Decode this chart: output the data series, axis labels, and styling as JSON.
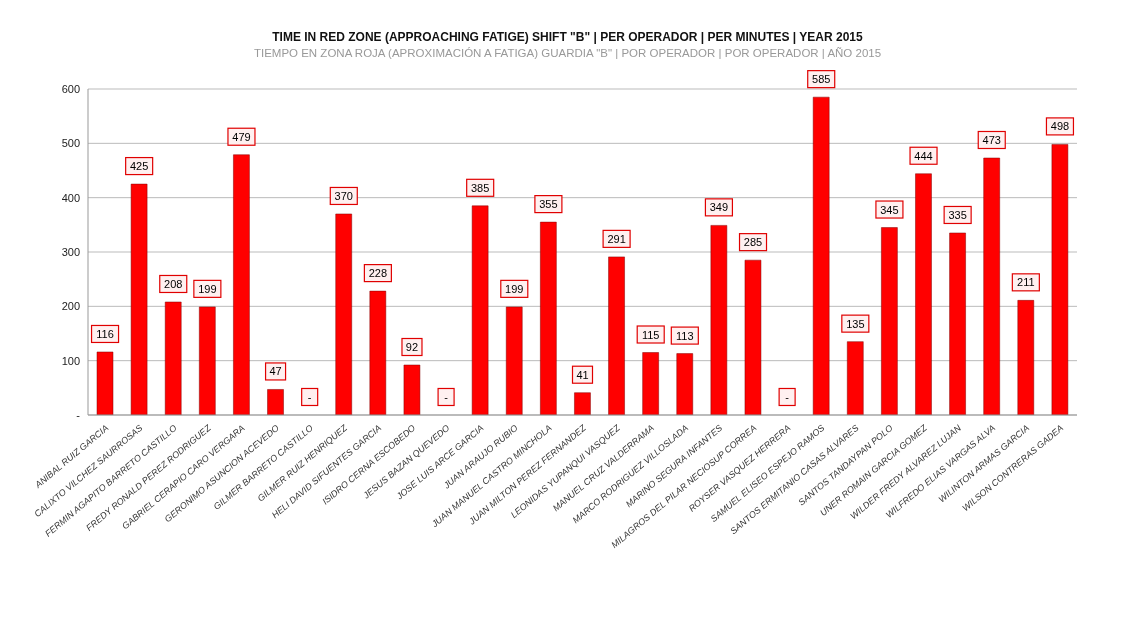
{
  "chart_data": {
    "type": "bar",
    "title": "TIME IN RED ZONE (APPROACHING FATIGE) SHIFT \"B\" | PER OPERADOR | PER MINUTES | YEAR 2015",
    "subtitle": "TIEMPO EN  ZONA  ROJA (APROXIMACIÓN A FATIGA) GUARDIA \"B\" | POR OPERADOR | POR OPERADOR | AÑO 2015",
    "categories": [
      "ANIBAL RUIZ GARCIA",
      "CALIXTO VILCHEZ SAURROSAS",
      "FERMIN AGAPITO BARRETO CASTILLO",
      "FREDY RONALD PEREZ RODRIGUEZ",
      "GABRIEL CERAPIO CARO VERGARA",
      "GERONIMO ASUNCION ACEVEDO",
      "GILMER BARRETO CASTILLO",
      "GILMER RUIZ HENRIQUEZ",
      "HELI DAVID SIFUENTES GARCIA",
      "ISIDRO CERNA ESCOBEDO",
      "JESUS BAZAN QUEVEDO",
      "JOSE LUIS ARCE GARCIA",
      "JUAN ARAUJO RUBIO",
      "JUAN MANUEL CASTRO MINCHOLA",
      "JUAN MILTON PEREZ FERNANDEZ",
      "LEONIDAS YUPANQUI VASQUEZ",
      "MANUEL CRUZ VALDERRAMA",
      "MARCO RODRIGUEZ VILLOSLADA",
      "MARINO SEGURA INFANTES",
      "MILAGROS DEL PILAR NECIOSUP CORREA",
      "ROYSER VASQUEZ HERRERA",
      "SAMUEL ELISEO ESPEJO RAMOS",
      "SANTOS ERMITANIO CASAS ALVARES",
      "SANTOS TANDAYPAN POLO",
      "UNER ROMAIN GARCIA GOMEZ",
      "WILDER FREDY ALVAREZ LUJAN",
      "WILFREDO ELIAS VARGAS ALVA",
      "WILINTON ARMAS GARCIA",
      "WILSON CONTRERAS GADEA"
    ],
    "values": [
      116,
      425,
      208,
      199,
      479,
      47,
      0,
      370,
      228,
      92,
      0,
      385,
      199,
      355,
      41,
      291,
      115,
      113,
      349,
      285,
      0,
      585,
      135,
      345,
      444,
      335,
      473,
      211,
      498
    ],
    "value_labels": [
      "116",
      "425",
      "208",
      "199",
      "479",
      "47",
      "-",
      "370",
      "228",
      "92",
      "-",
      "385",
      "199",
      "355",
      "41",
      "291",
      "115",
      "113",
      "349",
      "285",
      "-",
      "585",
      "135",
      "345",
      "444",
      "335",
      "473",
      "211",
      "498"
    ],
    "color": "#ff0000",
    "ylim": [
      0,
      600
    ],
    "yticks": [
      {
        "value": 0,
        "label": "-"
      },
      100,
      200,
      300,
      400,
      500,
      600
    ],
    "grid": "y"
  }
}
